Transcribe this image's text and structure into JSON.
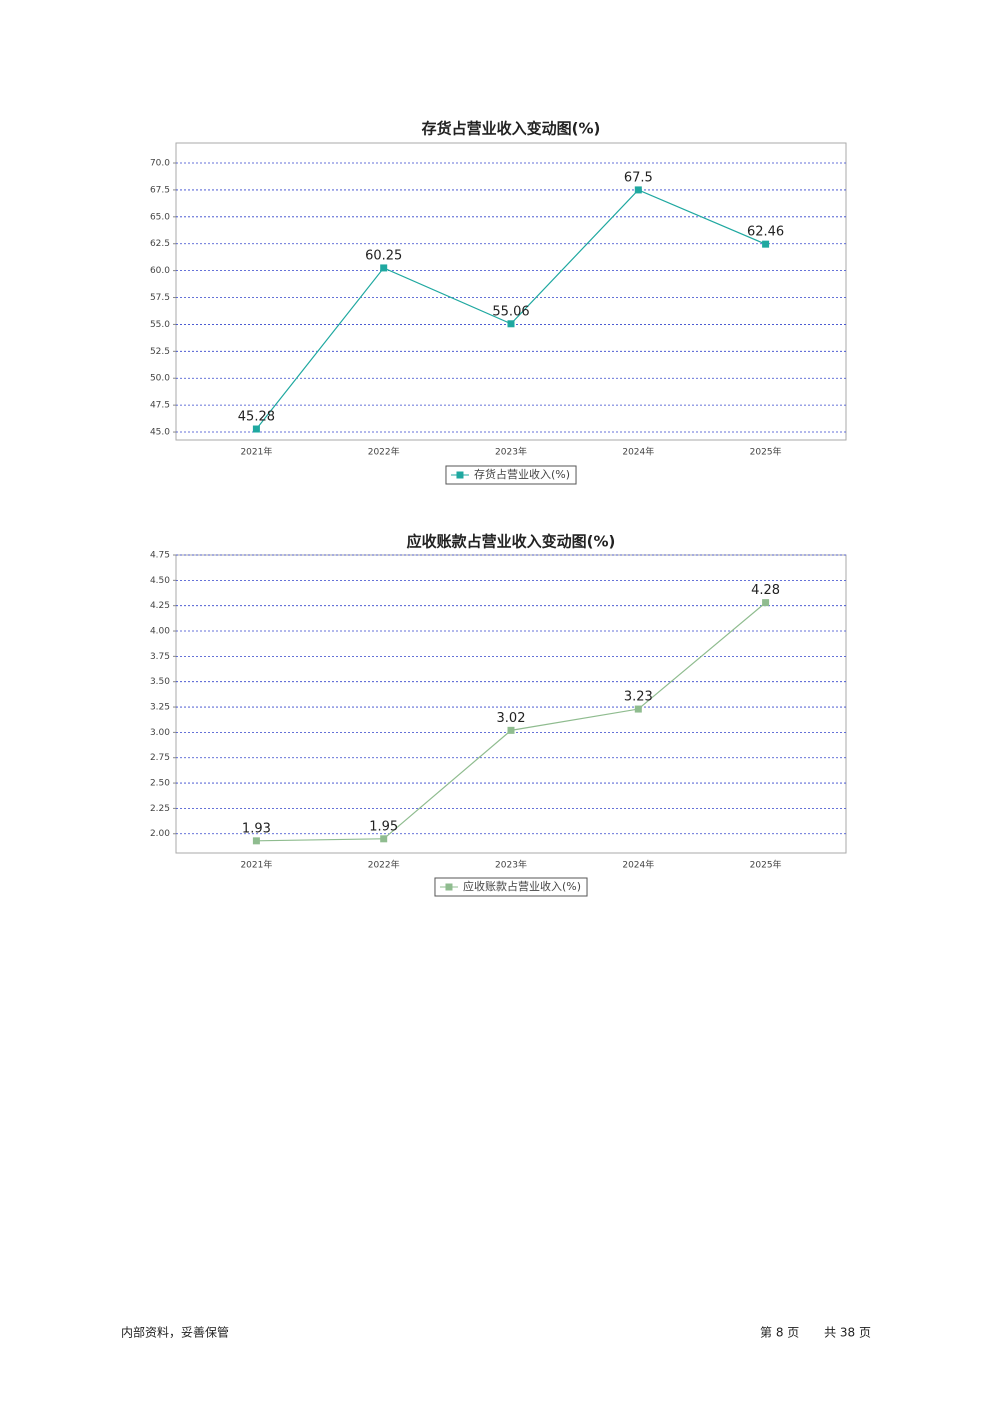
{
  "chart_data": [
    {
      "type": "line",
      "title": "存货占营业收入变动图(%)",
      "categories": [
        "2021年",
        "2022年",
        "2023年",
        "2024年",
        "2025年"
      ],
      "series": [
        {
          "name": "存货占营业收入(%)",
          "color": "#1fa8a0",
          "values": [
            45.28,
            60.25,
            55.06,
            67.5,
            62.46
          ]
        }
      ],
      "ylim": [
        44.26,
        71.86
      ],
      "yticks": [
        {
          "value": 45,
          "label": "45.0"
        },
        47.5,
        {
          "value": 50,
          "label": "50.0"
        },
        52.5,
        {
          "value": 55,
          "label": "55.0"
        },
        57.5,
        {
          "value": 60,
          "label": "60.0"
        },
        62.5,
        {
          "value": 65,
          "label": "65.0"
        },
        67.5,
        {
          "value": 70,
          "label": "70.0"
        }
      ],
      "grid": true
    },
    {
      "type": "line",
      "title": "应收账款占营业收入变动图(%)",
      "categories": [
        "2021年",
        "2022年",
        "2023年",
        "2024年",
        "2025年"
      ],
      "series": [
        {
          "name": "应收账款占营业收入(%)",
          "color": "#8fbc8f",
          "values": [
            1.93,
            1.95,
            3.02,
            3.23,
            4.28
          ]
        }
      ],
      "ylim": [
        1.81,
        4.75
      ],
      "yticks": [
        {
          "value": 2,
          "label": "2.00"
        },
        2.25,
        {
          "value": 2.5,
          "label": "2.50"
        },
        2.75,
        {
          "value": 3,
          "label": "3.00"
        },
        3.25,
        {
          "value": 3.5,
          "label": "3.50"
        },
        3.75,
        {
          "value": 4,
          "label": "4.00"
        },
        4.25,
        {
          "value": 4.5,
          "label": "4.50"
        },
        4.75
      ],
      "grid": true
    }
  ],
  "footer": {
    "left": "内部资料，妥善保管",
    "page": "第 8 页",
    "total": "共 38 页"
  }
}
